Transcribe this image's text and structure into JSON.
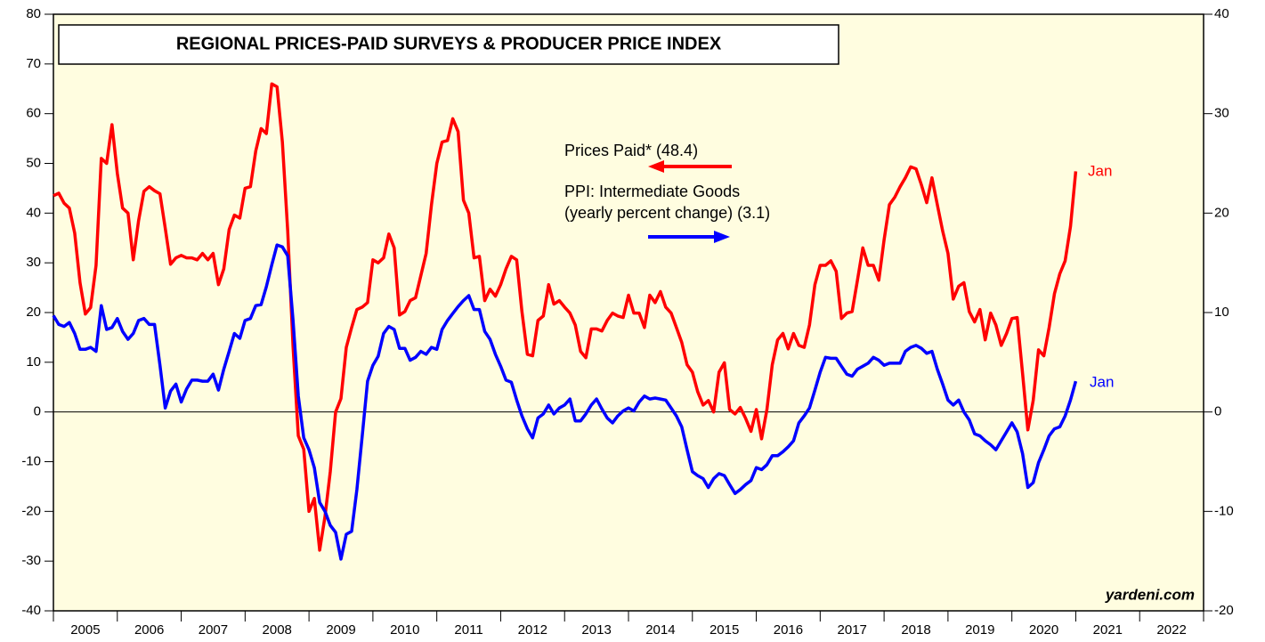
{
  "chart_data": {
    "type": "line",
    "title": "REGIONAL PRICES-PAID SURVEYS & PRODUCER PRICE INDEX",
    "annotations": [
      "Prices Paid* (48.4)",
      "PPI: Intermediate Goods",
      "(yearly percent change) (3.1)",
      "Jan",
      "Jan",
      "yardeni.com"
    ],
    "categories": [
      "2005",
      "2006",
      "2007",
      "2008",
      "2009",
      "2010",
      "2011",
      "2012",
      "2013",
      "2014",
      "2015",
      "2016",
      "2017",
      "2018",
      "2019",
      "2020",
      "2021",
      "2022"
    ],
    "xlim": [
      2005,
      2023
    ],
    "xticks": [
      2005,
      2006,
      2007,
      2008,
      2009,
      2010,
      2011,
      2012,
      2013,
      2014,
      2015,
      2016,
      2017,
      2018,
      2019,
      2020,
      2021,
      2022,
      2023
    ],
    "ylim": [
      -40,
      80
    ],
    "yticks": [
      -40,
      -30,
      -20,
      -10,
      0,
      10,
      20,
      30,
      40,
      50,
      60,
      70,
      80
    ],
    "y2lim": [
      -20,
      40
    ],
    "y2ticks": [
      -20,
      -10,
      0,
      10,
      20,
      30,
      40
    ],
    "x": [
      2005,
      2005.083,
      2005.167,
      2005.25,
      2005.333,
      2005.417,
      2005.5,
      2005.583,
      2005.667,
      2005.75,
      2005.833,
      2005.917,
      2006,
      2006.083,
      2006.167,
      2006.25,
      2006.333,
      2006.417,
      2006.5,
      2006.583,
      2006.667,
      2006.75,
      2006.833,
      2006.917,
      2007,
      2007.083,
      2007.167,
      2007.25,
      2007.333,
      2007.417,
      2007.5,
      2007.583,
      2007.667,
      2007.75,
      2007.833,
      2007.917,
      2008,
      2008.083,
      2008.167,
      2008.25,
      2008.333,
      2008.417,
      2008.5,
      2008.583,
      2008.667,
      2008.75,
      2008.833,
      2008.917,
      2009,
      2009.083,
      2009.167,
      2009.25,
      2009.333,
      2009.417,
      2009.5,
      2009.583,
      2009.667,
      2009.75,
      2009.833,
      2009.917,
      2010,
      2010.083,
      2010.167,
      2010.25,
      2010.333,
      2010.417,
      2010.5,
      2010.583,
      2010.667,
      2010.75,
      2010.833,
      2010.917,
      2011,
      2011.083,
      2011.167,
      2011.25,
      2011.333,
      2011.417,
      2011.5,
      2011.583,
      2011.667,
      2011.75,
      2011.833,
      2011.917,
      2012,
      2012.083,
      2012.167,
      2012.25,
      2012.333,
      2012.417,
      2012.5,
      2012.583,
      2012.667,
      2012.75,
      2012.833,
      2012.917,
      2013,
      2013.083,
      2013.167,
      2013.25,
      2013.333,
      2013.417,
      2013.5,
      2013.583,
      2013.667,
      2013.75,
      2013.833,
      2013.917,
      2014,
      2014.083,
      2014.167,
      2014.25,
      2014.333,
      2014.417,
      2014.5,
      2014.583,
      2014.667,
      2014.75,
      2014.833,
      2014.917,
      2015,
      2015.083,
      2015.167,
      2015.25,
      2015.333,
      2015.417,
      2015.5,
      2015.583,
      2015.667,
      2015.75,
      2015.833,
      2015.917,
      2016,
      2016.083,
      2016.167,
      2016.25,
      2016.333,
      2016.417,
      2016.5,
      2016.583,
      2016.667,
      2016.75,
      2016.833,
      2016.917,
      2017,
      2017.083,
      2017.167,
      2017.25,
      2017.333,
      2017.417,
      2017.5,
      2017.583,
      2017.667,
      2017.75,
      2017.833,
      2017.917,
      2018,
      2018.083,
      2018.167,
      2018.25,
      2018.333,
      2018.417,
      2018.5,
      2018.583,
      2018.667,
      2018.75,
      2018.833,
      2018.917,
      2019,
      2019.083,
      2019.167,
      2019.25,
      2019.333,
      2019.417,
      2019.5,
      2019.583,
      2019.667,
      2019.75,
      2019.833,
      2019.917,
      2020,
      2020.083,
      2020.167,
      2020.25,
      2020.333,
      2020.417,
      2020.5,
      2020.583,
      2020.667,
      2020.75,
      2020.833,
      2020.917,
      2021
    ],
    "series": [
      {
        "name": "Prices Paid*",
        "color": "#ff0000",
        "axis": "y",
        "values": [
          43.5,
          44,
          42,
          41,
          36,
          26,
          19.7,
          21,
          29.5,
          51,
          50,
          57.8,
          48,
          41,
          40,
          30.6,
          38.5,
          44.4,
          45.3,
          44.5,
          43.9,
          37,
          29.7,
          31,
          31.5,
          31,
          31,
          30.6,
          31.9,
          30.6,
          31.9,
          25.6,
          28.8,
          36.7,
          39.6,
          39,
          45,
          45.3,
          52.5,
          57,
          56,
          66,
          65.4,
          54.3,
          36.4,
          13.1,
          -4.8,
          -7.5,
          -20,
          -17.4,
          -27.8,
          -21,
          -12,
          0,
          2.7,
          13,
          17,
          20.6,
          21.1,
          22,
          30.6,
          30,
          31,
          35.8,
          33,
          19.5,
          20.2,
          22.4,
          23,
          27.4,
          31.9,
          41.7,
          50,
          54.3,
          54.6,
          59,
          56.4,
          42.6,
          40,
          31,
          31.3,
          22.4,
          24.7,
          23.3,
          25.6,
          28.8,
          31.3,
          30.6,
          20.2,
          11.6,
          11.3,
          18.4,
          19.3,
          25.6,
          21.7,
          22.4,
          21.1,
          19.9,
          17.5,
          12.2,
          10.9,
          16.7,
          16.7,
          16.3,
          18.4,
          19.9,
          19.3,
          19,
          23.5,
          19.9,
          19.9,
          17,
          23.5,
          22,
          24.2,
          21.1,
          19.9,
          17,
          14,
          9.5,
          8,
          4.1,
          1.4,
          2.3,
          0,
          8,
          9.9,
          0.5,
          -0.4,
          0.9,
          -1.3,
          -3.9,
          0.5,
          -5.4,
          0.5,
          9.5,
          14.5,
          15.8,
          12.7,
          15.8,
          13.4,
          13,
          17.5,
          25.6,
          29.5,
          29.5,
          30.4,
          28.3,
          18.8,
          19.9,
          20.2,
          26.5,
          33,
          29.5,
          29.5,
          26.5,
          34.6,
          41.7,
          43.2,
          45.3,
          47.1,
          49.3,
          48.9,
          45.7,
          42.1,
          47.1,
          41.7,
          36.4,
          31.9,
          22.7,
          25.3,
          26,
          20.2,
          18.1,
          20.6,
          14.5,
          19.9,
          17.5,
          13.4,
          15.8,
          18.8,
          19,
          7.7,
          -3.6,
          2.3,
          12.5,
          11.3,
          17,
          23.8,
          27.8,
          30.4,
          37.3,
          48.4
        ]
      },
      {
        "name": "PPI: Intermediate Goods",
        "color": "#0000ff",
        "axis": "y2",
        "values": [
          9.7,
          8.8,
          8.6,
          9,
          7.9,
          6.3,
          6.3,
          6.5,
          6.1,
          10.7,
          8.3,
          8.5,
          9.4,
          8.1,
          7.3,
          7.9,
          9.2,
          9.4,
          8.8,
          8.8,
          4.7,
          0.4,
          2.1,
          2.8,
          1,
          2.3,
          3.2,
          3.2,
          3.1,
          3.1,
          3.8,
          2.2,
          4.3,
          6.1,
          7.9,
          7.4,
          9.2,
          9.4,
          10.7,
          10.8,
          12.6,
          14.8,
          16.8,
          16.6,
          15.7,
          9.2,
          1.6,
          -2.6,
          -3.8,
          -5.6,
          -9.1,
          -10,
          -11.4,
          -12.1,
          -14.8,
          -12.3,
          -12,
          -7.8,
          -2.4,
          3.1,
          4.7,
          5.6,
          7.9,
          8.6,
          8.3,
          6.4,
          6.4,
          5.2,
          5.5,
          6.1,
          5.8,
          6.5,
          6.3,
          8.3,
          9.2,
          9.9,
          10.6,
          11.2,
          11.7,
          10.3,
          10.3,
          8.1,
          7.3,
          5.8,
          4.6,
          3.2,
          3,
          1.2,
          -0.4,
          -1.7,
          -2.6,
          -0.6,
          -0.2,
          0.7,
          -0.2,
          0.4,
          0.7,
          1.3,
          -0.9,
          -0.9,
          -0.2,
          0.7,
          1.3,
          0.3,
          -0.6,
          -1.1,
          -0.4,
          0.1,
          0.4,
          0.1,
          1,
          1.6,
          1.3,
          1.4,
          1.3,
          1.2,
          0.4,
          -0.4,
          -1.5,
          -3.8,
          -6,
          -6.4,
          -6.7,
          -7.6,
          -6.7,
          -6.2,
          -6.4,
          -7.3,
          -8.2,
          -7.8,
          -7.3,
          -6.9,
          -5.6,
          -5.8,
          -5.3,
          -4.4,
          -4.4,
          -4,
          -3.5,
          -2.9,
          -1.1,
          -0.4,
          0.4,
          2.2,
          4,
          5.5,
          5.4,
          5.4,
          4.6,
          3.8,
          3.6,
          4.3,
          4.6,
          4.9,
          5.5,
          5.2,
          4.7,
          4.9,
          4.9,
          4.9,
          6.1,
          6.5,
          6.7,
          6.4,
          5.9,
          6.1,
          4.3,
          2.8,
          1.2,
          0.7,
          1.2,
          0,
          -0.8,
          -2.2,
          -2.4,
          -2.9,
          -3.3,
          -3.8,
          -2.9,
          -2,
          -1.1,
          -2,
          -4.2,
          -7.6,
          -7.1,
          -5.1,
          -3.8,
          -2.4,
          -1.7,
          -1.5,
          -0.4,
          1.2,
          3.1
        ]
      }
    ]
  }
}
